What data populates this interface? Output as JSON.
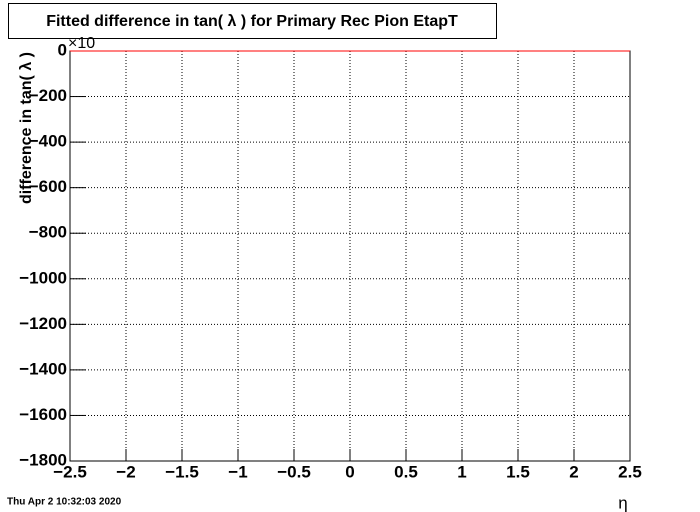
{
  "chart_data": {
    "type": "line",
    "title": "Fitted difference in tan( λ ) for Primary Rec Pion EtapT",
    "y_label": "difference in tan( λ )",
    "x_label": "η",
    "y_exponent": "×10",
    "timestamp": "Thu Apr  2 10:32:03 2020",
    "x": [
      -2.5,
      2.5
    ],
    "series": [
      {
        "color": "#ff0000",
        "values": [
          0,
          0
        ]
      }
    ],
    "xlim": [
      -2.5,
      2.5
    ],
    "xticks": [
      {
        "value": -2.5,
        "label": "−2.5"
      },
      {
        "value": -2,
        "label": "−2"
      },
      {
        "value": -1.5,
        "label": "−1.5"
      },
      {
        "value": -1,
        "label": "−1"
      },
      {
        "value": -0.5,
        "label": "−0.5"
      },
      0,
      0.5,
      1,
      1.5,
      2,
      2.5
    ],
    "ylim": [
      -1800,
      0
    ],
    "yticks": [
      0,
      {
        "value": -200,
        "label": "−200"
      },
      {
        "value": -400,
        "label": "−400"
      },
      {
        "value": -600,
        "label": "−600"
      },
      {
        "value": -800,
        "label": "−800"
      },
      {
        "value": -1000,
        "label": "−1000"
      },
      {
        "value": -1200,
        "label": "−1200"
      },
      {
        "value": -1400,
        "label": "−1400"
      },
      {
        "value": -1600,
        "label": "−1600"
      },
      {
        "value": -1800,
        "label": "−1800"
      }
    ],
    "grid": true
  }
}
